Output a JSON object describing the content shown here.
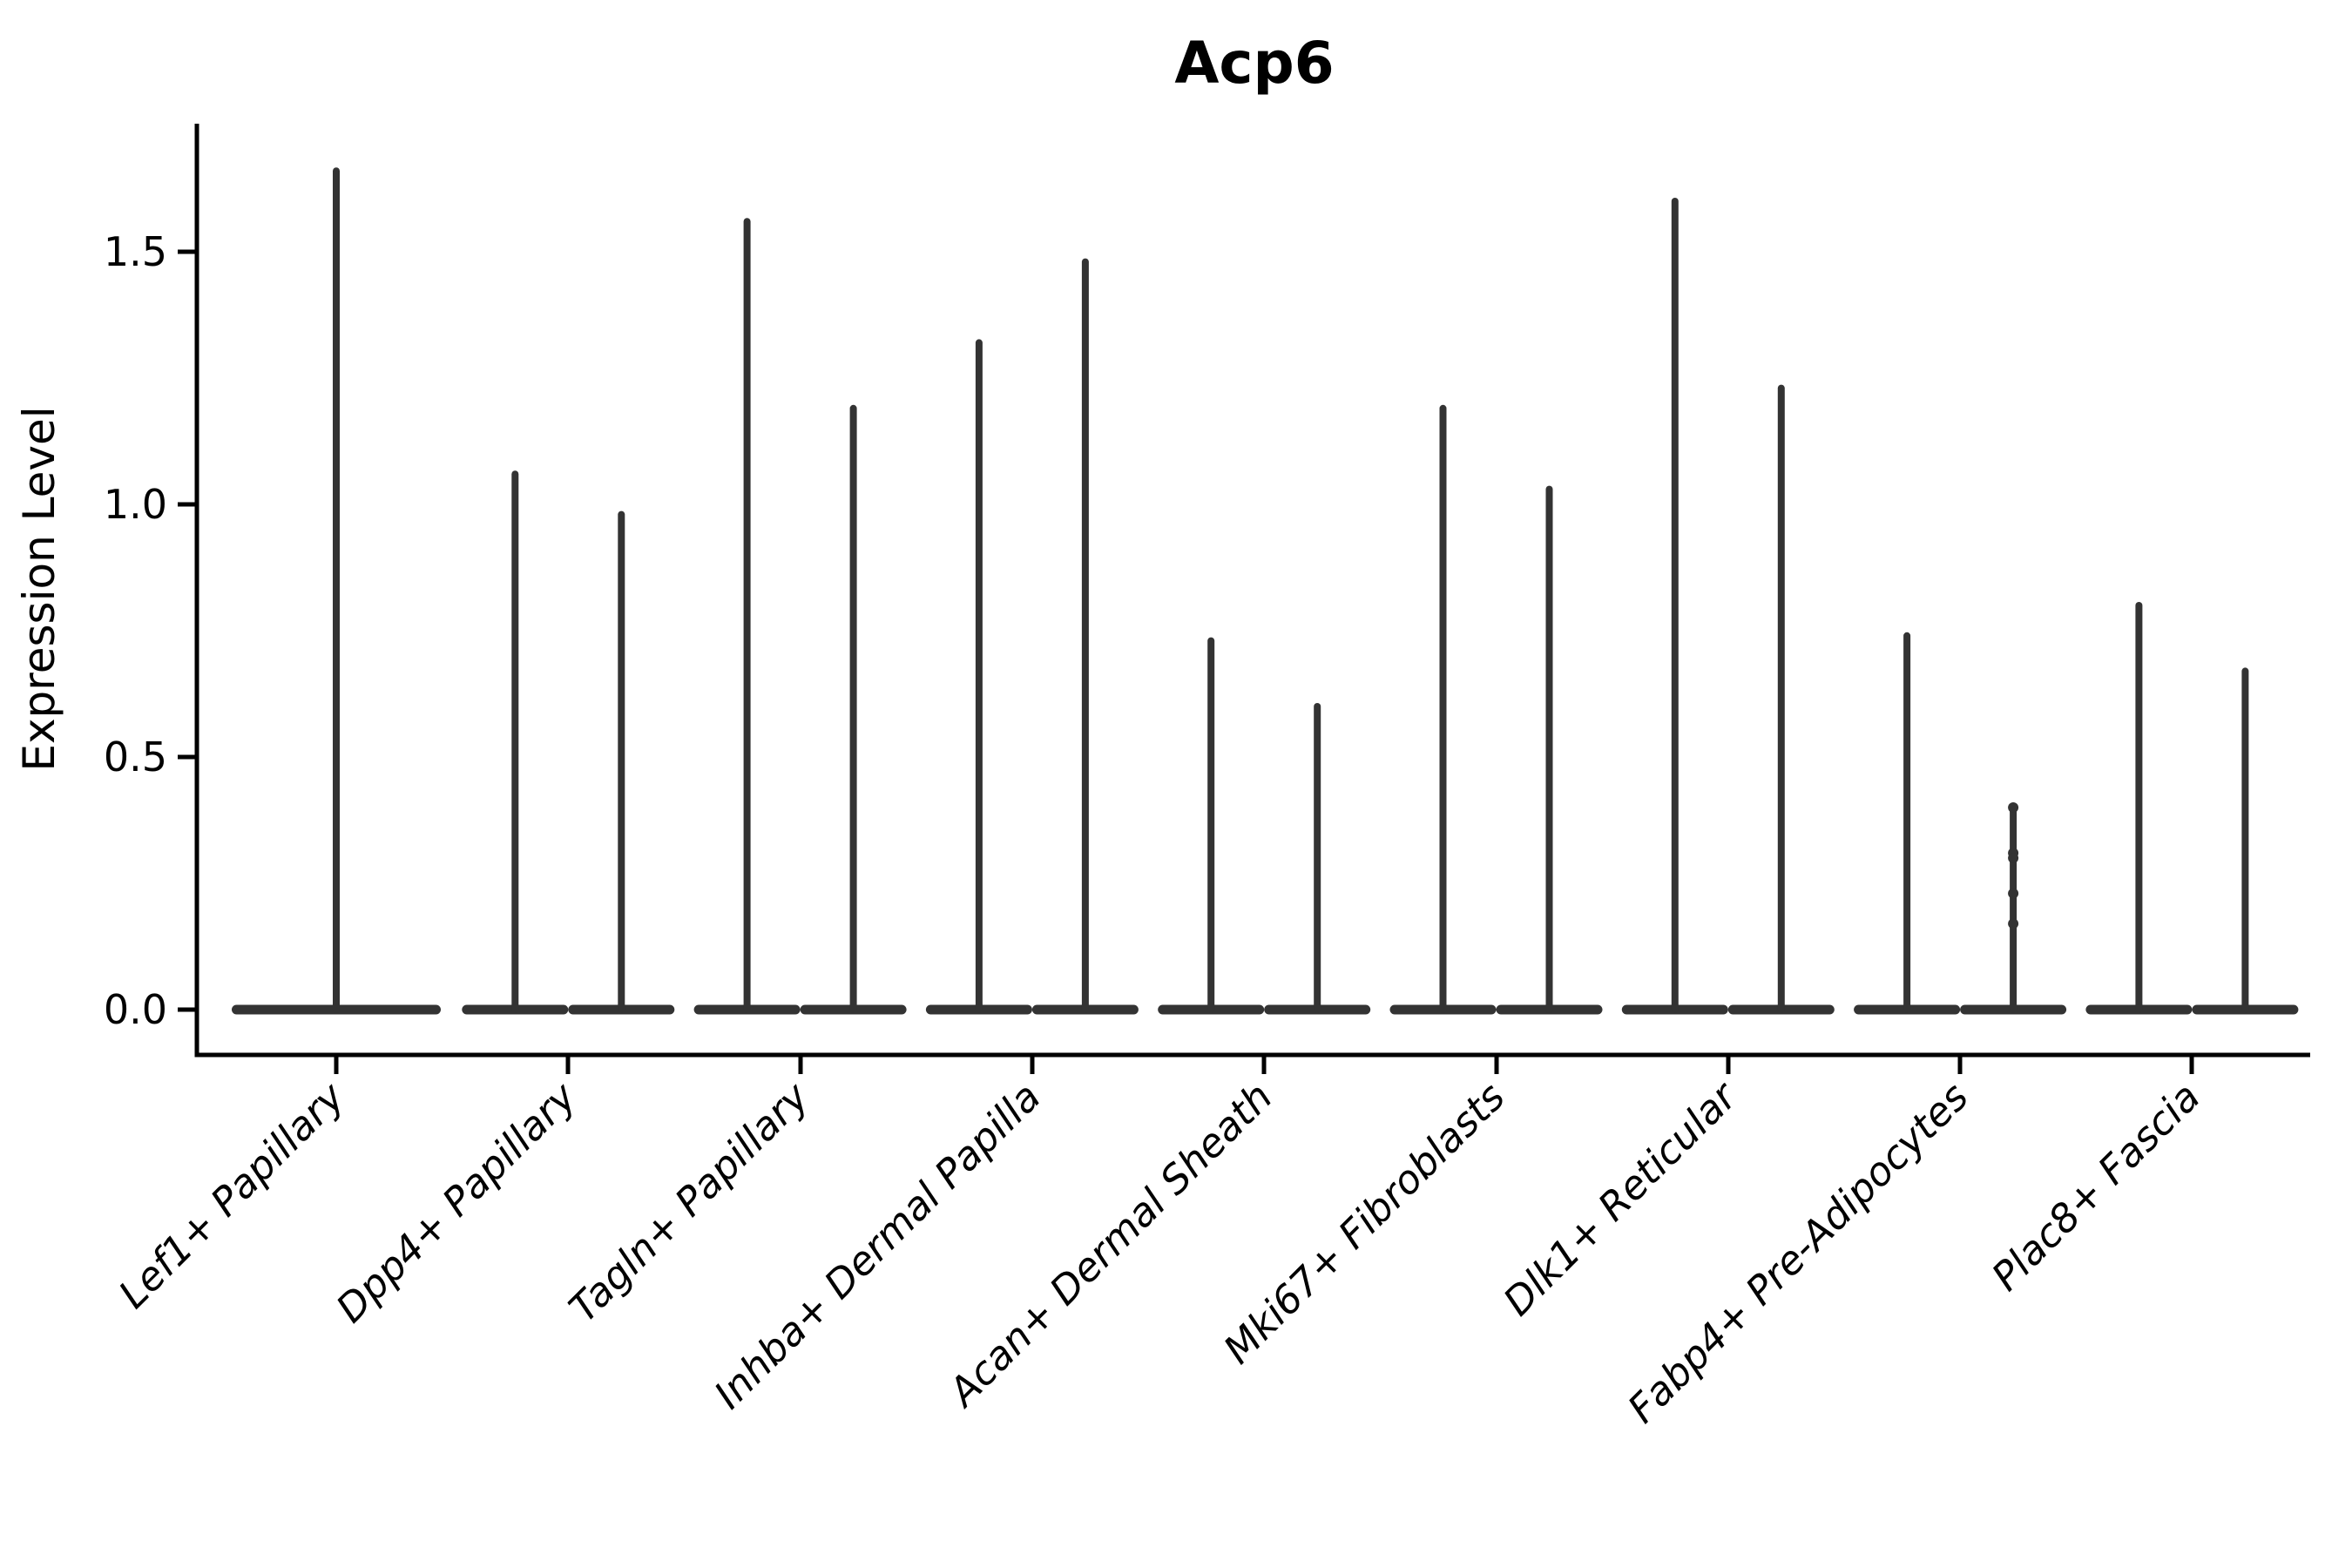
{
  "page": {
    "background": "#ffffff"
  },
  "chart_data": {
    "type": "violin",
    "title": "Acp6",
    "ylabel": "Expression Level",
    "xlabel": "",
    "ytick_labels": [
      "0.0",
      "0.5",
      "1.0",
      "1.5"
    ],
    "ytick_values": [
      0.0,
      0.5,
      1.0,
      1.5
    ],
    "ylim": [
      -0.09,
      1.75
    ],
    "grid": false,
    "legend": "none",
    "violin_color": "#333333",
    "axis_color": "#000000",
    "categories": [
      "Lef1+ Papillary",
      "Dpp4+ Papillary",
      "Tagln+ Papillary",
      "Inhba+ Dermal Papilla",
      "Acan+ Dermal Sheath",
      "Mki67+ Fibroblasts",
      "Dlk1+ Reticular",
      "Fabp4+ Pre-Adipocytes",
      "Plac8+ Fascia"
    ],
    "groups": [
      {
        "category": "Lef1+ Papillary",
        "violins": [
          {
            "max": 1.66,
            "wide": true
          }
        ]
      },
      {
        "category": "Dpp4+ Papillary",
        "violins": [
          {
            "max": 1.06
          },
          {
            "max": 0.98
          }
        ]
      },
      {
        "category": "Tagln+ Papillary",
        "violins": [
          {
            "max": 1.56
          },
          {
            "max": 1.19
          }
        ]
      },
      {
        "category": "Inhba+ Dermal Papilla",
        "violins": [
          {
            "max": 1.32
          },
          {
            "max": 1.48
          }
        ]
      },
      {
        "category": "Acan+ Dermal Sheath",
        "violins": [
          {
            "max": 0.73
          },
          {
            "max": 0.6
          }
        ]
      },
      {
        "category": "Mki67+ Fibroblasts",
        "violins": [
          {
            "max": 1.19
          },
          {
            "max": 1.03
          }
        ]
      },
      {
        "category": "Dlk1+ Reticular",
        "violins": [
          {
            "max": 1.6
          },
          {
            "max": 1.23
          }
        ]
      },
      {
        "category": "Fabp4+ Pre-Adipocytes",
        "violins": [
          {
            "max": 0.74
          },
          {
            "max": 0.4,
            "points": [
              0.4,
              0.31,
              0.3,
              0.23,
              0.17
            ]
          }
        ]
      },
      {
        "category": "Plac8+ Fascia",
        "violins": [
          {
            "max": 0.8
          },
          {
            "max": 0.67
          }
        ]
      }
    ]
  }
}
